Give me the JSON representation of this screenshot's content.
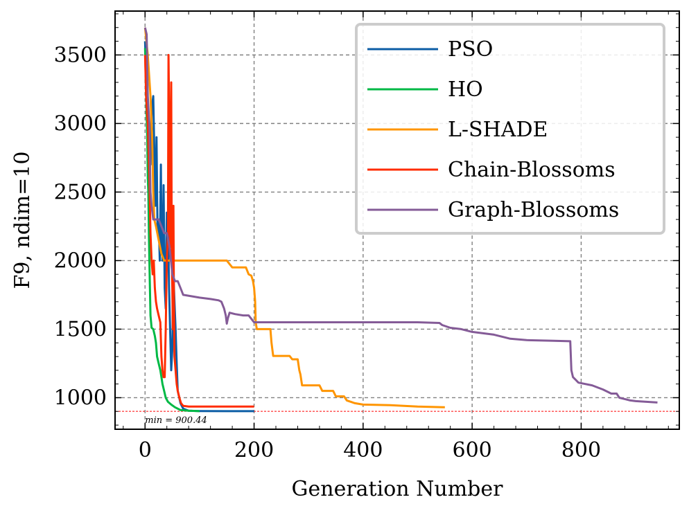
{
  "chart_data": {
    "type": "line",
    "title": "",
    "xlabel": "Generation Number",
    "ylabel": "F9, ndim=10",
    "xlim": [
      -55,
      980
    ],
    "ylim": [
      770,
      3820
    ],
    "x_ticks": [
      0,
      200,
      400,
      600,
      800
    ],
    "x_tick_labels": [
      "0",
      "200",
      "400",
      "600",
      "800"
    ],
    "y_ticks": [
      1000,
      1500,
      2000,
      2500,
      3000,
      3500
    ],
    "y_tick_labels": [
      "1000",
      "1500",
      "2000",
      "2500",
      "3000",
      "3500"
    ],
    "grid": true,
    "legend_position": "top-right",
    "reference_line": {
      "y": 900.44,
      "label": "min = 900.44",
      "color": "#ff0000"
    },
    "series": [
      {
        "name": "PSO",
        "color": "#0c5da5",
        "points": [
          [
            0,
            3600
          ],
          [
            3,
            3200
          ],
          [
            6,
            2800
          ],
          [
            10,
            2700
          ],
          [
            12,
            3100
          ],
          [
            15,
            3200
          ],
          [
            17,
            2800
          ],
          [
            19,
            2400
          ],
          [
            21,
            2900
          ],
          [
            23,
            2200
          ],
          [
            25,
            2300
          ],
          [
            27,
            2000
          ],
          [
            29,
            2700
          ],
          [
            30,
            2200
          ],
          [
            32,
            2000
          ],
          [
            34,
            2550
          ],
          [
            36,
            1800
          ],
          [
            38,
            1650
          ],
          [
            40,
            2350
          ],
          [
            42,
            2300
          ],
          [
            44,
            1800
          ],
          [
            46,
            1500
          ],
          [
            48,
            1200
          ],
          [
            50,
            1350
          ],
          [
            52,
            1900
          ],
          [
            54,
            1700
          ],
          [
            56,
            1500
          ],
          [
            58,
            1250
          ],
          [
            60,
            1050
          ],
          [
            65,
            960
          ],
          [
            70,
            920
          ],
          [
            80,
            905
          ],
          [
            100,
            903
          ],
          [
            150,
            902
          ],
          [
            200,
            902
          ]
        ]
      },
      {
        "name": "HO",
        "color": "#00b945",
        "points": [
          [
            0,
            3550
          ],
          [
            2,
            3200
          ],
          [
            4,
            2900
          ],
          [
            5,
            2600
          ],
          [
            6,
            2500
          ],
          [
            7,
            2200
          ],
          [
            8,
            2000
          ],
          [
            9,
            1800
          ],
          [
            10,
            1600
          ],
          [
            12,
            1510
          ],
          [
            15,
            1500
          ],
          [
            18,
            1450
          ],
          [
            20,
            1400
          ],
          [
            22,
            1300
          ],
          [
            25,
            1250
          ],
          [
            28,
            1200
          ],
          [
            30,
            1150
          ],
          [
            32,
            1100
          ],
          [
            35,
            1050
          ],
          [
            38,
            1000
          ],
          [
            42,
            970
          ],
          [
            48,
            950
          ],
          [
            55,
            930
          ],
          [
            65,
            910
          ],
          [
            80,
            905
          ],
          [
            100,
            902
          ]
        ]
      },
      {
        "name": "L-SHADE",
        "color": "#ff9500",
        "points": [
          [
            0,
            3700
          ],
          [
            5,
            3500
          ],
          [
            10,
            3200
          ],
          [
            13,
            2900
          ],
          [
            15,
            2500
          ],
          [
            17,
            2300
          ],
          [
            20,
            2250
          ],
          [
            25,
            2150
          ],
          [
            30,
            2050
          ],
          [
            35,
            2000
          ],
          [
            60,
            2000
          ],
          [
            100,
            2000
          ],
          [
            150,
            2000
          ],
          [
            160,
            1950
          ],
          [
            185,
            1950
          ],
          [
            190,
            1900
          ],
          [
            195,
            1890
          ],
          [
            198,
            1850
          ],
          [
            200,
            1800
          ],
          [
            202,
            1700
          ],
          [
            203,
            1550
          ],
          [
            205,
            1500
          ],
          [
            230,
            1500
          ],
          [
            232,
            1400
          ],
          [
            235,
            1305
          ],
          [
            265,
            1305
          ],
          [
            270,
            1280
          ],
          [
            280,
            1280
          ],
          [
            283,
            1200
          ],
          [
            285,
            1170
          ],
          [
            288,
            1090
          ],
          [
            320,
            1090
          ],
          [
            325,
            1050
          ],
          [
            345,
            1050
          ],
          [
            350,
            1010
          ],
          [
            365,
            1010
          ],
          [
            370,
            980
          ],
          [
            385,
            960
          ],
          [
            400,
            950
          ],
          [
            450,
            945
          ],
          [
            500,
            935
          ],
          [
            550,
            930
          ]
        ]
      },
      {
        "name": "Chain-Blossoms",
        "color": "#ff2c00",
        "points": [
          [
            0,
            3500
          ],
          [
            2,
            3200
          ],
          [
            5,
            3000
          ],
          [
            8,
            2600
          ],
          [
            10,
            2200
          ],
          [
            12,
            2000
          ],
          [
            14,
            1900
          ],
          [
            16,
            2000
          ],
          [
            18,
            1800
          ],
          [
            20,
            1700
          ],
          [
            22,
            1650
          ],
          [
            25,
            1600
          ],
          [
            28,
            1550
          ],
          [
            30,
            1300
          ],
          [
            32,
            1200
          ],
          [
            34,
            1150
          ],
          [
            36,
            1150
          ],
          [
            38,
            1500
          ],
          [
            40,
            2000
          ],
          [
            42,
            2200
          ],
          [
            43,
            3500
          ],
          [
            45,
            2800
          ],
          [
            46,
            2100
          ],
          [
            47,
            2600
          ],
          [
            48,
            3300
          ],
          [
            49,
            2000
          ],
          [
            50,
            1800
          ],
          [
            51,
            1500
          ],
          [
            52,
            2400
          ],
          [
            53,
            1700
          ],
          [
            54,
            1300
          ],
          [
            56,
            1200
          ],
          [
            58,
            1100
          ],
          [
            60,
            1050
          ],
          [
            63,
            1000
          ],
          [
            66,
            960
          ],
          [
            70,
            940
          ],
          [
            80,
            935
          ],
          [
            100,
            935
          ],
          [
            150,
            935
          ],
          [
            200,
            935
          ]
        ]
      },
      {
        "name": "Graph-Blossoms",
        "color": "#845b97",
        "points": [
          [
            0,
            3700
          ],
          [
            3,
            3650
          ],
          [
            5,
            3200
          ],
          [
            8,
            3000
          ],
          [
            10,
            2500
          ],
          [
            12,
            2400
          ],
          [
            15,
            2300
          ],
          [
            20,
            2300
          ],
          [
            25,
            2300
          ],
          [
            30,
            2250
          ],
          [
            35,
            2200
          ],
          [
            40,
            2200
          ],
          [
            45,
            2100
          ],
          [
            50,
            1900
          ],
          [
            55,
            1850
          ],
          [
            60,
            1850
          ],
          [
            65,
            1800
          ],
          [
            70,
            1750
          ],
          [
            85,
            1740
          ],
          [
            100,
            1730
          ],
          [
            120,
            1720
          ],
          [
            135,
            1710
          ],
          [
            140,
            1700
          ],
          [
            145,
            1650
          ],
          [
            148,
            1600
          ],
          [
            150,
            1540
          ],
          [
            152,
            1580
          ],
          [
            155,
            1620
          ],
          [
            165,
            1610
          ],
          [
            180,
            1600
          ],
          [
            190,
            1600
          ],
          [
            198,
            1560
          ],
          [
            200,
            1550
          ],
          [
            300,
            1550
          ],
          [
            400,
            1550
          ],
          [
            500,
            1550
          ],
          [
            540,
            1545
          ],
          [
            545,
            1530
          ],
          [
            560,
            1510
          ],
          [
            580,
            1500
          ],
          [
            600,
            1480
          ],
          [
            620,
            1470
          ],
          [
            640,
            1460
          ],
          [
            660,
            1440
          ],
          [
            670,
            1430
          ],
          [
            700,
            1420
          ],
          [
            750,
            1415
          ],
          [
            780,
            1412
          ],
          [
            782,
            1200
          ],
          [
            785,
            1150
          ],
          [
            790,
            1130
          ],
          [
            795,
            1110
          ],
          [
            820,
            1090
          ],
          [
            840,
            1060
          ],
          [
            850,
            1040
          ],
          [
            855,
            1030
          ],
          [
            865,
            1030
          ],
          [
            870,
            1000
          ],
          [
            880,
            990
          ],
          [
            890,
            980
          ],
          [
            900,
            975
          ],
          [
            920,
            970
          ],
          [
            940,
            965
          ]
        ]
      }
    ]
  }
}
